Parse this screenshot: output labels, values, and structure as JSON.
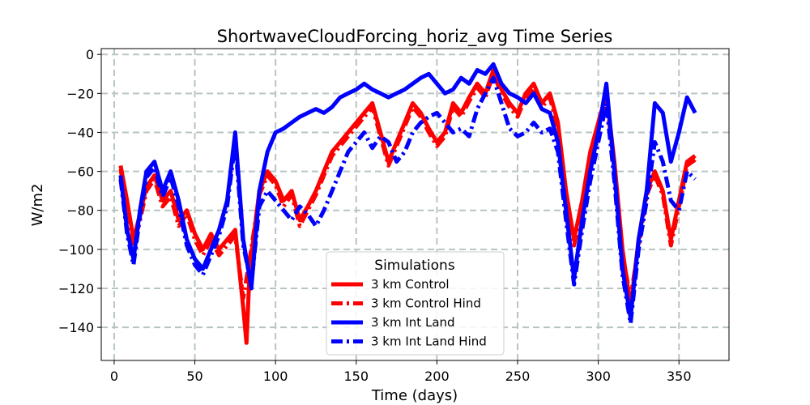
{
  "chart_data": {
    "type": "line",
    "title": "ShortwaveCloudForcing_horiz_avg Time Series",
    "xlabel": "Time (days)",
    "ylabel": "W/m2",
    "xlim": [
      -8,
      381
    ],
    "ylim": [
      -157,
      3
    ],
    "xticks": [
      0,
      50,
      100,
      150,
      200,
      250,
      300,
      350
    ],
    "xtick_labels": [
      "0",
      "50",
      "100",
      "150",
      "200",
      "250",
      "300",
      "350"
    ],
    "yticks": [
      0,
      -20,
      -40,
      -60,
      -80,
      -100,
      -120,
      -140
    ],
    "ytick_labels": [
      "0",
      "−20",
      "−40",
      "−60",
      "−80",
      "−100",
      "−120",
      "−140"
    ],
    "grid": true,
    "legend": {
      "title": "Simulations",
      "placement": "lower-center"
    },
    "series": [
      {
        "name": "3 km Control",
        "color": "#ff0000",
        "style": "solid",
        "x": [
          4,
          8,
          12,
          16,
          20,
          25,
          30,
          35,
          40,
          45,
          50,
          55,
          60,
          65,
          70,
          75,
          80,
          82,
          84,
          90,
          95,
          100,
          105,
          110,
          115,
          120,
          125,
          130,
          135,
          140,
          145,
          150,
          155,
          160,
          165,
          170,
          175,
          180,
          185,
          190,
          195,
          200,
          205,
          210,
          215,
          220,
          225,
          230,
          235,
          240,
          245,
          250,
          255,
          260,
          265,
          270,
          275,
          280,
          285,
          290,
          295,
          300,
          305,
          310,
          315,
          320,
          325,
          330,
          335,
          340,
          345,
          350,
          355,
          360
        ],
        "values": [
          -57,
          -75,
          -95,
          -82,
          -68,
          -62,
          -75,
          -70,
          -85,
          -80,
          -92,
          -100,
          -92,
          -100,
          -95,
          -90,
          -130,
          -148,
          -110,
          -70,
          -60,
          -65,
          -75,
          -70,
          -85,
          -78,
          -70,
          -60,
          -50,
          -45,
          -40,
          -35,
          -30,
          -25,
          -40,
          -55,
          -45,
          -35,
          -25,
          -30,
          -38,
          -45,
          -40,
          -25,
          -30,
          -22,
          -15,
          -20,
          -8,
          -18,
          -25,
          -30,
          -20,
          -15,
          -25,
          -20,
          -35,
          -70,
          -95,
          -75,
          -50,
          -35,
          -20,
          -55,
          -100,
          -130,
          -95,
          -70,
          -60,
          -70,
          -95,
          -75,
          -55,
          -52
        ]
      },
      {
        "name": "3 km Control Hind",
        "color": "#ff0000",
        "style": "dashed",
        "x": [
          4,
          8,
          12,
          16,
          20,
          25,
          30,
          35,
          40,
          45,
          50,
          55,
          60,
          65,
          70,
          75,
          80,
          84,
          90,
          95,
          100,
          105,
          110,
          115,
          120,
          125,
          130,
          135,
          140,
          145,
          150,
          155,
          160,
          165,
          170,
          175,
          180,
          185,
          190,
          195,
          200,
          205,
          210,
          215,
          220,
          225,
          230,
          235,
          240,
          245,
          250,
          255,
          260,
          265,
          270,
          275,
          280,
          285,
          290,
          295,
          300,
          305,
          310,
          315,
          320,
          325,
          330,
          335,
          340,
          345,
          350,
          355,
          360
        ],
        "values": [
          -59,
          -78,
          -98,
          -85,
          -70,
          -64,
          -78,
          -73,
          -88,
          -82,
          -95,
          -103,
          -95,
          -103,
          -98,
          -93,
          -125,
          -105,
          -72,
          -62,
          -67,
          -78,
          -72,
          -88,
          -80,
          -72,
          -62,
          -52,
          -47,
          -42,
          -37,
          -32,
          -27,
          -42,
          -57,
          -47,
          -37,
          -27,
          -32,
          -40,
          -47,
          -42,
          -27,
          -32,
          -24,
          -17,
          -22,
          -10,
          -20,
          -27,
          -32,
          -22,
          -17,
          -27,
          -22,
          -38,
          -73,
          -98,
          -78,
          -52,
          -37,
          -22,
          -58,
          -103,
          -125,
          -98,
          -72,
          -62,
          -72,
          -98,
          -78,
          -57,
          -54
        ]
      },
      {
        "name": "3 km Int Land",
        "color": "#0000ff",
        "style": "solid",
        "x": [
          4,
          8,
          12,
          16,
          20,
          25,
          30,
          35,
          40,
          45,
          50,
          55,
          60,
          65,
          70,
          75,
          80,
          85,
          90,
          95,
          100,
          105,
          110,
          115,
          120,
          125,
          130,
          135,
          140,
          145,
          150,
          155,
          160,
          165,
          170,
          175,
          180,
          185,
          190,
          195,
          200,
          205,
          210,
          215,
          220,
          225,
          230,
          235,
          240,
          245,
          250,
          255,
          260,
          265,
          270,
          275,
          280,
          285,
          290,
          295,
          300,
          305,
          310,
          315,
          320,
          325,
          330,
          335,
          340,
          345,
          350,
          355,
          360
        ],
        "values": [
          -62,
          -90,
          -105,
          -80,
          -60,
          -55,
          -70,
          -60,
          -75,
          -95,
          -105,
          -110,
          -100,
          -90,
          -75,
          -40,
          -95,
          -120,
          -70,
          -50,
          -40,
          -38,
          -35,
          -32,
          -30,
          -28,
          -30,
          -27,
          -22,
          -20,
          -18,
          -15,
          -18,
          -20,
          -22,
          -20,
          -18,
          -15,
          -12,
          -10,
          -15,
          -20,
          -18,
          -12,
          -15,
          -8,
          -10,
          -5,
          -15,
          -20,
          -22,
          -25,
          -20,
          -28,
          -30,
          -45,
          -80,
          -115,
          -85,
          -60,
          -40,
          -15,
          -60,
          -110,
          -135,
          -95,
          -70,
          -25,
          -30,
          -55,
          -40,
          -22,
          -30
        ]
      },
      {
        "name": "3 km Int Land Hind",
        "color": "#0000ff",
        "style": "dashed",
        "x": [
          4,
          8,
          12,
          16,
          20,
          25,
          30,
          35,
          40,
          45,
          50,
          55,
          60,
          65,
          70,
          75,
          80,
          85,
          90,
          95,
          100,
          105,
          110,
          115,
          120,
          125,
          130,
          135,
          140,
          145,
          150,
          155,
          160,
          165,
          170,
          175,
          180,
          185,
          190,
          195,
          200,
          205,
          210,
          215,
          220,
          225,
          230,
          235,
          240,
          245,
          250,
          255,
          260,
          265,
          270,
          275,
          280,
          285,
          290,
          295,
          300,
          305,
          310,
          315,
          320,
          325,
          330,
          335,
          340,
          345,
          350,
          355,
          360
        ],
        "values": [
          -64,
          -92,
          -108,
          -83,
          -63,
          -58,
          -73,
          -63,
          -78,
          -98,
          -108,
          -113,
          -103,
          -93,
          -78,
          -45,
          -98,
          -118,
          -78,
          -70,
          -75,
          -80,
          -85,
          -78,
          -82,
          -88,
          -80,
          -70,
          -60,
          -50,
          -45,
          -40,
          -48,
          -42,
          -45,
          -55,
          -50,
          -40,
          -35,
          -32,
          -30,
          -35,
          -40,
          -38,
          -42,
          -28,
          -20,
          -12,
          -25,
          -38,
          -42,
          -40,
          -35,
          -40,
          -38,
          -50,
          -85,
          -118,
          -90,
          -65,
          -45,
          -25,
          -65,
          -113,
          -138,
          -100,
          -75,
          -45,
          -55,
          -75,
          -80,
          -60,
          -64
        ]
      }
    ]
  }
}
